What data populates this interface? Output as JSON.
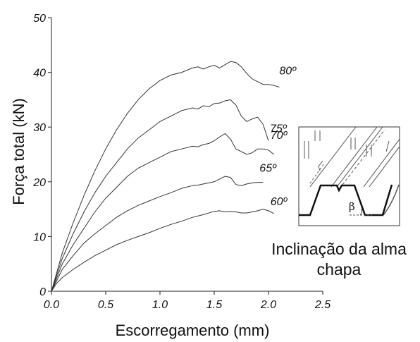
{
  "chart_data": {
    "type": "line",
    "title": "",
    "xlabel": "Escorregamento (mm)",
    "ylabel": "Força total (kN)",
    "xlim": [
      0,
      2.5
    ],
    "ylim": [
      0,
      50
    ],
    "xticks": [
      "0.0",
      "0.5",
      "1.0",
      "1.5",
      "2.0",
      "2.5"
    ],
    "yticks": [
      "0",
      "10",
      "20",
      "30",
      "40",
      "50"
    ],
    "grid": false,
    "series": [
      {
        "name": "80º",
        "x": [
          0.0,
          0.05,
          0.1,
          0.2,
          0.3,
          0.4,
          0.5,
          0.6,
          0.7,
          0.8,
          0.9,
          1.0,
          1.1,
          1.2,
          1.3,
          1.35,
          1.4,
          1.45,
          1.5,
          1.55,
          1.6,
          1.65,
          1.7,
          1.75,
          1.8,
          1.85,
          1.9,
          1.95,
          2.0,
          2.05,
          2.1
        ],
        "y": [
          0,
          3.5,
          7,
          12.5,
          17.5,
          22,
          26,
          29.5,
          32.5,
          35,
          37,
          38.5,
          39.5,
          40,
          40.8,
          41,
          40.6,
          41,
          41.3,
          40.8,
          41.4,
          42,
          41.8,
          41,
          39.8,
          38.8,
          38.3,
          37.8,
          37.8,
          37.6,
          37.3
        ]
      },
      {
        "name": "75º",
        "x": [
          0.0,
          0.05,
          0.1,
          0.2,
          0.3,
          0.4,
          0.5,
          0.6,
          0.7,
          0.8,
          0.9,
          1.0,
          1.1,
          1.2,
          1.3,
          1.35,
          1.4,
          1.45,
          1.5,
          1.55,
          1.6,
          1.65,
          1.7,
          1.75,
          1.8,
          1.85,
          1.9,
          1.95,
          2.0
        ],
        "y": [
          0,
          3,
          6,
          10.5,
          14.5,
          18,
          21,
          23.5,
          26,
          28,
          29.5,
          31,
          32,
          33,
          33.5,
          33.3,
          33.9,
          33.7,
          34.3,
          34.4,
          34.8,
          35,
          34,
          32,
          31,
          31.5,
          31.8,
          30.5,
          27.5
        ]
      },
      {
        "name": "70º",
        "x": [
          0.0,
          0.05,
          0.1,
          0.2,
          0.3,
          0.4,
          0.5,
          0.6,
          0.7,
          0.8,
          0.9,
          1.0,
          1.1,
          1.2,
          1.3,
          1.35,
          1.4,
          1.45,
          1.5,
          1.55,
          1.6,
          1.65,
          1.7,
          1.75,
          1.8,
          1.85,
          1.9,
          1.95,
          2.0,
          2.05
        ],
        "y": [
          0,
          2.5,
          5,
          8.5,
          11.5,
          14.5,
          17,
          19,
          21,
          22.5,
          23.5,
          24.5,
          25.5,
          26,
          26.5,
          26.4,
          26.8,
          27,
          27.5,
          28.2,
          28.8,
          27.8,
          26,
          25.5,
          25,
          25.3,
          26,
          26,
          25.8,
          25
        ]
      },
      {
        "name": "65º",
        "x": [
          0.0,
          0.05,
          0.1,
          0.2,
          0.3,
          0.4,
          0.5,
          0.6,
          0.7,
          0.8,
          0.9,
          1.0,
          1.1,
          1.2,
          1.3,
          1.35,
          1.4,
          1.45,
          1.5,
          1.55,
          1.6,
          1.65,
          1.7,
          1.75,
          1.8,
          1.85,
          1.9,
          1.95
        ],
        "y": [
          0,
          2,
          4,
          6.5,
          8.8,
          10.5,
          12,
          13.5,
          14.7,
          15.7,
          16.5,
          17.3,
          18,
          18.8,
          19.3,
          19.4,
          19.6,
          19.8,
          20,
          20.5,
          21,
          20.8,
          19.5,
          19.3,
          19.6,
          19.8,
          19.9,
          19.9
        ]
      },
      {
        "name": "60º",
        "x": [
          0.0,
          0.05,
          0.1,
          0.2,
          0.3,
          0.4,
          0.5,
          0.6,
          0.7,
          0.8,
          0.9,
          1.0,
          1.1,
          1.2,
          1.3,
          1.4,
          1.5,
          1.55,
          1.6,
          1.65,
          1.7,
          1.75,
          1.8,
          1.85,
          1.9,
          1.95,
          2.0,
          2.05
        ],
        "y": [
          0,
          1.5,
          2.5,
          4,
          5.3,
          6.5,
          7.5,
          8.5,
          9.3,
          10,
          10.7,
          11.5,
          12.2,
          12.8,
          13.5,
          14,
          14.6,
          14.7,
          14.5,
          14.6,
          14.5,
          14.3,
          14.3,
          14.5,
          14.7,
          15,
          14.7,
          14.2
        ]
      }
    ],
    "inset": {
      "caption_lines": [
        "Inclinação da alma",
        "chapa"
      ],
      "angle_label": "β"
    }
  }
}
